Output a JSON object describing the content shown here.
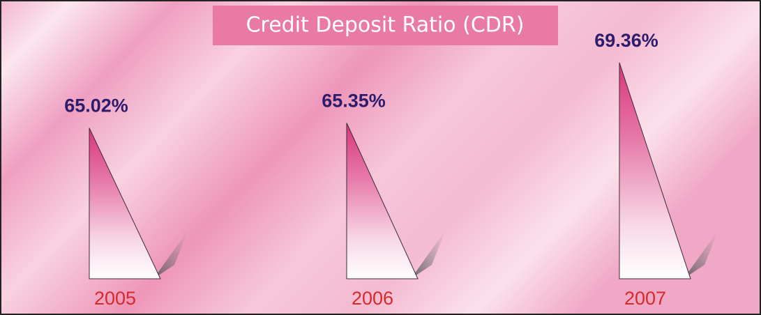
{
  "chart_data": {
    "type": "bar",
    "title": "Credit Deposit Ratio (CDR)",
    "categories": [
      "2005",
      "2006",
      "2007"
    ],
    "values": [
      65.02,
      65.35,
      69.36
    ],
    "value_labels": [
      "65.02%",
      "65.35%",
      "69.36%"
    ],
    "color": "#dd4586",
    "ylim": [
      55,
      70
    ]
  }
}
